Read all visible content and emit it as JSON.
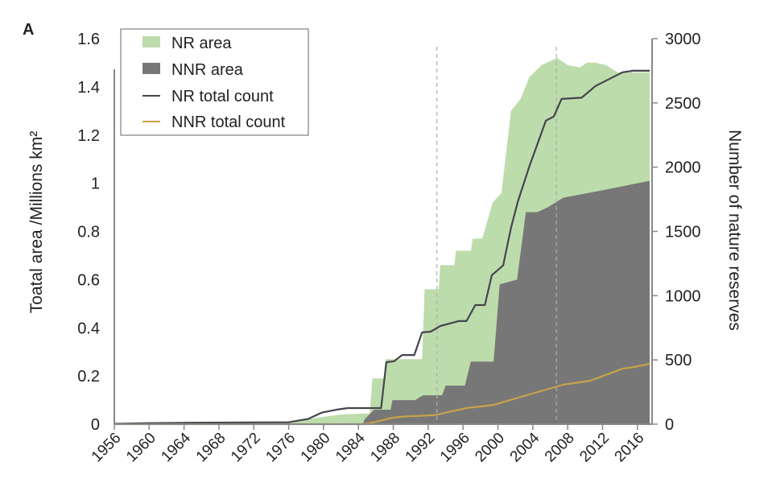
{
  "chart_data": {
    "type": "area",
    "panel_label": "A",
    "ylabel": "Toatal area /Millions km²",
    "ylabel_right": "Number of nature reserves",
    "xlim": [
      1956,
      2017.5
    ],
    "ylim": [
      0,
      1.6
    ],
    "ylim_right": [
      0,
      3000
    ],
    "x_ticks": [
      "1956",
      "1960",
      "1964",
      "1968",
      "1972",
      "1976",
      "1980",
      "1984",
      "1988",
      "1992",
      "1996",
      "2000",
      "2004",
      "2008",
      "2012",
      "2016"
    ],
    "y_ticks": [
      "0",
      "0.2",
      "0.4",
      "0.6",
      "0.8",
      "1",
      "1.2",
      "1.4",
      "1.6"
    ],
    "y_ticks_right": [
      "0",
      "500",
      "1000",
      "1500",
      "2000",
      "2500",
      "3000"
    ],
    "grid": false,
    "legend_placement": "top-left",
    "reference_lines_x": [
      1993,
      2006.7
    ],
    "series": [
      {
        "name": "NR area",
        "kind": "area",
        "axis": "left",
        "color": "#bddcab",
        "points": [
          [
            1956,
            0.003
          ],
          [
            1965,
            0.006
          ],
          [
            1976,
            0.01
          ],
          [
            1978,
            0.02
          ],
          [
            1980,
            0.03
          ],
          [
            1982,
            0.04
          ],
          [
            1985.3,
            0.045
          ],
          [
            1985.6,
            0.19
          ],
          [
            1986.9,
            0.19
          ],
          [
            1987.1,
            0.27
          ],
          [
            1991.3,
            0.27
          ],
          [
            1991.6,
            0.56
          ],
          [
            1993.2,
            0.56
          ],
          [
            1993.4,
            0.66
          ],
          [
            1995,
            0.66
          ],
          [
            1995.2,
            0.72
          ],
          [
            1996.9,
            0.72
          ],
          [
            1997.1,
            0.77
          ],
          [
            1998.2,
            0.77
          ],
          [
            1999.4,
            0.92
          ],
          [
            2000.4,
            0.96
          ],
          [
            2001.5,
            1.3
          ],
          [
            2002.6,
            1.35
          ],
          [
            2003.6,
            1.44
          ],
          [
            2005,
            1.49
          ],
          [
            2006.8,
            1.52
          ],
          [
            2008,
            1.49
          ],
          [
            2009.4,
            1.48
          ],
          [
            2010.2,
            1.5
          ],
          [
            2011.2,
            1.5
          ],
          [
            2012.4,
            1.49
          ],
          [
            2013.7,
            1.46
          ],
          [
            2017.4,
            1.46
          ]
        ]
      },
      {
        "name": "NNR area",
        "kind": "area",
        "axis": "left",
        "color": "#777777",
        "points": [
          [
            1984.5,
            0
          ],
          [
            1984.7,
            0.02
          ],
          [
            1985.8,
            0.06
          ],
          [
            1987.7,
            0.06
          ],
          [
            1987.9,
            0.1
          ],
          [
            1990.5,
            0.1
          ],
          [
            1991.4,
            0.12
          ],
          [
            1993.6,
            0.12
          ],
          [
            1994,
            0.16
          ],
          [
            1996.2,
            0.16
          ],
          [
            1996.9,
            0.26
          ],
          [
            1999.5,
            0.26
          ],
          [
            2000.2,
            0.58
          ],
          [
            2002.2,
            0.6
          ],
          [
            2003.2,
            0.88
          ],
          [
            2004.5,
            0.88
          ],
          [
            2005.7,
            0.9
          ],
          [
            2007.5,
            0.94
          ],
          [
            2011.9,
            0.97
          ],
          [
            2017.4,
            1.01
          ]
        ]
      },
      {
        "name": "NR total count",
        "kind": "line",
        "axis": "right",
        "color": "#45454f",
        "points": [
          [
            1956,
            3
          ],
          [
            1960,
            8
          ],
          [
            1966,
            12
          ],
          [
            1976,
            15
          ],
          [
            1978.2,
            40
          ],
          [
            1979.8,
            90
          ],
          [
            1981.7,
            115
          ],
          [
            1982.8,
            125
          ],
          [
            1986.6,
            125
          ],
          [
            1987.2,
            482
          ],
          [
            1988.1,
            490
          ],
          [
            1989,
            538
          ],
          [
            1990.4,
            538
          ],
          [
            1991.3,
            714
          ],
          [
            1992.3,
            720
          ],
          [
            1993.4,
            764
          ],
          [
            1995.5,
            802
          ],
          [
            1996.4,
            802
          ],
          [
            1997.4,
            927
          ],
          [
            1998.5,
            927
          ],
          [
            1999.3,
            1159
          ],
          [
            2000.6,
            1235
          ],
          [
            2001.5,
            1529
          ],
          [
            2002.3,
            1735
          ],
          [
            2003.6,
            2005
          ],
          [
            2005.5,
            2362
          ],
          [
            2006.4,
            2393
          ],
          [
            2007.3,
            2531
          ],
          [
            2009.6,
            2540
          ],
          [
            2011.2,
            2632
          ],
          [
            2014.3,
            2738
          ],
          [
            2015.5,
            2750
          ],
          [
            2017.4,
            2750
          ]
        ]
      },
      {
        "name": "NNR total count",
        "kind": "line",
        "axis": "right",
        "color": "#c9a24a",
        "points": [
          [
            1956,
            0
          ],
          [
            1984.6,
            0
          ],
          [
            1985.8,
            15
          ],
          [
            1987.9,
            50
          ],
          [
            1989.1,
            59
          ],
          [
            1992.7,
            70
          ],
          [
            1996.4,
            125
          ],
          [
            1999.5,
            150
          ],
          [
            2003.6,
            232
          ],
          [
            2007.5,
            307
          ],
          [
            2010.6,
            338
          ],
          [
            2014.3,
            432
          ],
          [
            2015.3,
            440
          ],
          [
            2017.4,
            470
          ]
        ]
      }
    ]
  }
}
